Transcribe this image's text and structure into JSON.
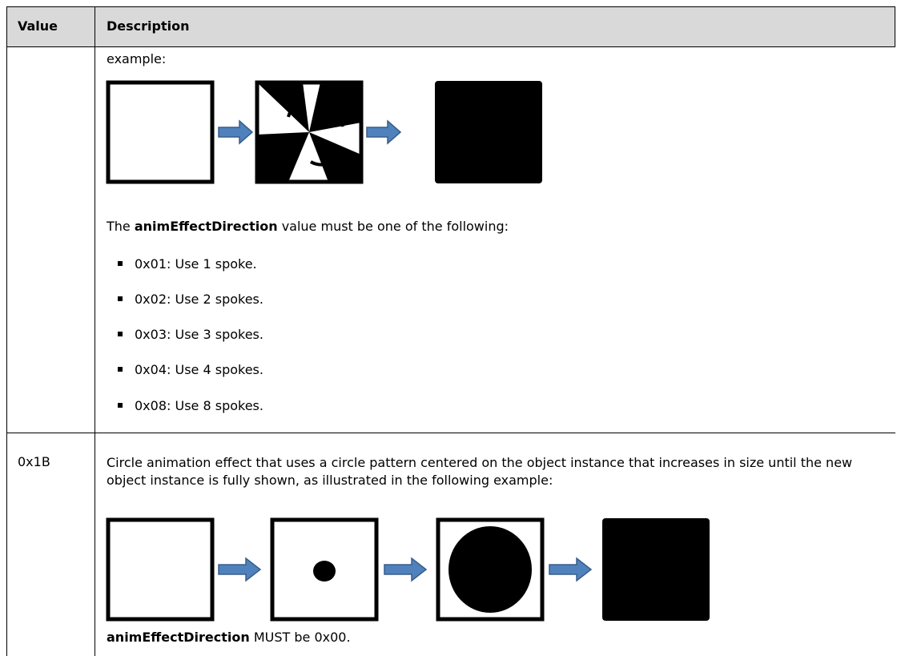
{
  "table": {
    "header": {
      "value": "Value",
      "description": "Description"
    },
    "rows": [
      {
        "description": {
          "intro": "example:",
          "para": {
            "pre": "The",
            "bold": "animEffectDirection",
            "post": "value must be one of the following:"
          },
          "items": [
            "0x01: Use 1 spoke.",
            "0x02: Use 2 spokes.",
            "0x03: Use 3 spokes.",
            "0x04: Use 4 spokes.",
            "0x08: Use 8 spokes."
          ]
        }
      },
      {
        "value": "0x1B",
        "description": {
          "text": "Circle animation effect that uses a circle pattern centered on the object instance that increases in size until the new object instance is fully shown, as illustrated in the following example:",
          "para": {
            "bold": "animEffectDirection",
            "post": "MUST be 0x00."
          }
        }
      }
    ]
  }
}
